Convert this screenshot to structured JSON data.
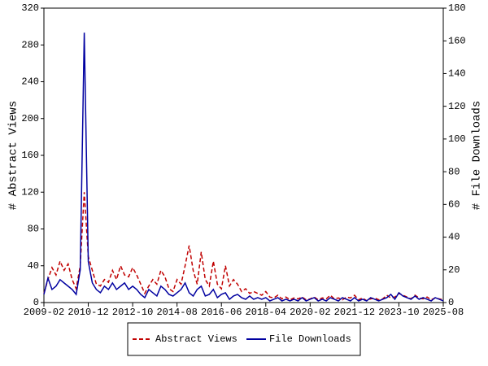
{
  "chart_data": {
    "type": "line",
    "y_label": "# Abstract Views",
    "y2_label": "# File Downloads",
    "x": [
      "2009-02",
      "2009-04",
      "2009-06",
      "2009-08",
      "2009-10",
      "2009-12",
      "2010-02",
      "2010-04",
      "2010-06",
      "2010-08",
      "2010-10",
      "2010-12",
      "2011-02",
      "2011-04",
      "2011-06",
      "2011-08",
      "2011-10",
      "2011-12",
      "2012-02",
      "2012-04",
      "2012-06",
      "2012-08",
      "2012-10",
      "2012-12",
      "2013-02",
      "2013-04",
      "2013-06",
      "2013-08",
      "2013-10",
      "2013-12",
      "2014-02",
      "2014-04",
      "2014-06",
      "2014-08",
      "2014-10",
      "2014-12",
      "2015-02",
      "2015-04",
      "2015-06",
      "2015-08",
      "2015-10",
      "2015-12",
      "2016-02",
      "2016-04",
      "2016-06",
      "2016-08",
      "2016-10",
      "2016-12",
      "2017-02",
      "2017-04",
      "2017-06",
      "2017-08",
      "2017-10",
      "2017-12",
      "2018-02",
      "2018-04",
      "2018-06",
      "2018-08",
      "2018-10",
      "2018-12",
      "2019-02",
      "2019-04",
      "2019-06",
      "2019-08",
      "2019-10",
      "2019-12",
      "2020-02",
      "2020-04",
      "2020-06",
      "2020-08",
      "2020-10",
      "2020-12",
      "2021-02",
      "2021-04",
      "2021-06",
      "2021-08",
      "2021-10",
      "2021-12",
      "2022-02",
      "2022-04",
      "2022-06",
      "2022-08",
      "2022-10",
      "2022-12",
      "2023-02",
      "2023-04",
      "2023-06",
      "2023-08",
      "2023-10",
      "2023-12",
      "2024-02",
      "2024-04",
      "2024-06",
      "2024-08",
      "2024-10",
      "2024-12",
      "2025-02",
      "2025-04",
      "2025-06",
      "2025-08"
    ],
    "xlim": [
      "2009-02",
      "2025-08"
    ],
    "xticks": [
      "2009-02",
      "2010-12",
      "2012-10",
      "2014-08",
      "2016-06",
      "2018-04",
      "2020-02",
      "2021-12",
      "2023-10",
      "2025-08"
    ],
    "ylim": [
      0,
      320
    ],
    "yticks": [
      0,
      40,
      80,
      120,
      160,
      200,
      240,
      280,
      320
    ],
    "y2lim": [
      0,
      180
    ],
    "y2ticks": [
      0,
      20,
      40,
      60,
      80,
      100,
      120,
      140,
      160,
      180
    ],
    "series": [
      {
        "name": "Abstract Views",
        "color": "#c00000",
        "dashed": true,
        "values": [
          10,
          25,
          38,
          30,
          45,
          35,
          42,
          25,
          15,
          40,
          120,
          50,
          35,
          20,
          18,
          25,
          22,
          35,
          25,
          40,
          30,
          28,
          38,
          30,
          20,
          10,
          18,
          25,
          20,
          35,
          28,
          15,
          12,
          25,
          20,
          40,
          62,
          35,
          20,
          55,
          25,
          18,
          45,
          20,
          15,
          40,
          18,
          25,
          20,
          12,
          15,
          10,
          12,
          10,
          8,
          12,
          6,
          5,
          8,
          4,
          6,
          3,
          5,
          4,
          6,
          3,
          4,
          6,
          3,
          5,
          4,
          8,
          4,
          5,
          3,
          6,
          5,
          8,
          3,
          5,
          2,
          4,
          5,
          3,
          4,
          8,
          5,
          6,
          10,
          8,
          6,
          4,
          8,
          5,
          4,
          6,
          3,
          5,
          4,
          3
        ]
      },
      {
        "name": "File Downloads",
        "color": "#0000a0",
        "dashed": false,
        "axis": "y2",
        "values": [
          5,
          15,
          8,
          10,
          14,
          12,
          10,
          8,
          5,
          20,
          165,
          25,
          12,
          8,
          6,
          10,
          8,
          12,
          8,
          10,
          12,
          8,
          10,
          8,
          5,
          3,
          8,
          6,
          4,
          10,
          8,
          5,
          4,
          6,
          8,
          12,
          6,
          4,
          8,
          10,
          4,
          5,
          8,
          3,
          5,
          6,
          2,
          4,
          5,
          3,
          2,
          4,
          2,
          3,
          2,
          3,
          1,
          2,
          3,
          1,
          2,
          1,
          2,
          1,
          3,
          1,
          2,
          3,
          1,
          2,
          1,
          3,
          2,
          1,
          3,
          2,
          1,
          3,
          1,
          2,
          1,
          3,
          2,
          1,
          2,
          3,
          5,
          2,
          6,
          4,
          3,
          2,
          4,
          2,
          3,
          2,
          1,
          3,
          2,
          1
        ]
      }
    ]
  }
}
